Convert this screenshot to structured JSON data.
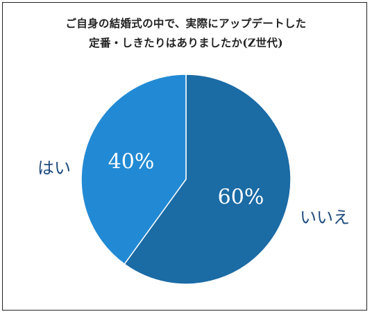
{
  "chart_data": {
    "type": "pie",
    "title_lines": [
      "ご自身の結婚式の中で、実際にアップデートした",
      "定番・しきたりはありましたか(Z世代)"
    ],
    "slices": [
      {
        "label": "いいえ",
        "value": 60,
        "value_label": "60%",
        "color": "#1b6ba5"
      },
      {
        "label": "はい",
        "value": 40,
        "value_label": "40%",
        "color": "#228ad4"
      }
    ]
  }
}
